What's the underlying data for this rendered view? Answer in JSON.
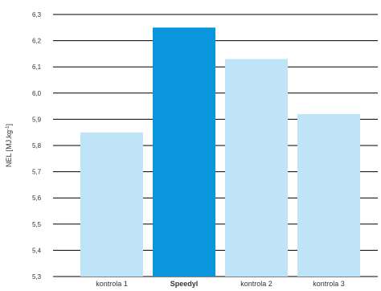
{
  "chart_data": {
    "type": "bar",
    "categories": [
      "kontrola 1",
      "Speedyl",
      "kontrola 2",
      "kontrola 3"
    ],
    "values": [
      5.85,
      6.25,
      6.13,
      5.92
    ],
    "highlighted_category": "Speedyl",
    "ylabel_main": "NEL [MJ.kg",
    "ylabel_sup": "-1",
    "ylabel_tail": "]",
    "ylim": [
      5.3,
      6.3
    ],
    "yticks": [
      "5,3",
      "5,4",
      "5,5",
      "5,6",
      "5,7",
      "5,8",
      "5,9",
      "6,0",
      "6,1",
      "6,2",
      "6,3"
    ],
    "grid": true,
    "legend": "none",
    "colors": {
      "bar": "#bfe3f7",
      "highlight": "#0a96dc",
      "grid": "#000000",
      "text": "#333333"
    }
  }
}
